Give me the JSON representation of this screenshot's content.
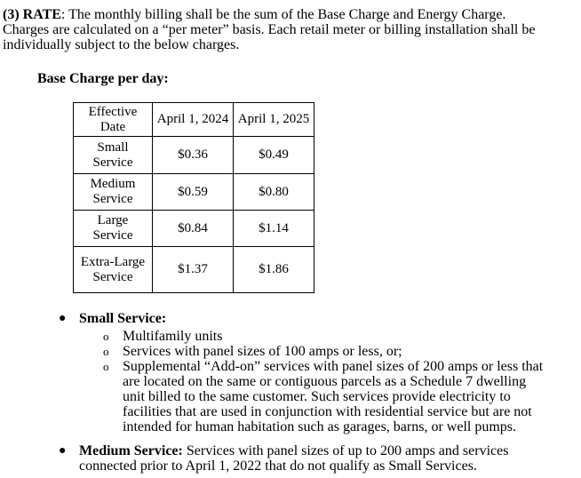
{
  "section": {
    "label": "(3) RATE",
    "text": ": The monthly billing shall be the sum of the Base Charge and Energy Charge. Charges are calculated on a “per meter” basis. Each retail meter or billing installation shall be individually subject to the below charges."
  },
  "table": {
    "caption": "Base Charge per day:",
    "header": [
      "Effective Date",
      "April 1, 2024",
      "April 1, 2025"
    ],
    "rows": [
      [
        "Small Service",
        "$0.36",
        "$0.49"
      ],
      [
        "Medium Service",
        "$0.59",
        "$0.80"
      ],
      [
        "Large Service",
        "$0.84",
        "$1.14"
      ],
      [
        "Extra-Large Service",
        "$1.37",
        "$1.86"
      ]
    ]
  },
  "bullets": [
    {
      "label": "Small Service:",
      "text": "",
      "items": [
        "Multifamily units",
        "Services with panel sizes of 100 amps or less, or;",
        "Supplemental “Add-on” services with panel sizes of 200 amps or less that are located on the same or contiguous parcels as a Schedule 7 dwelling unit billed to the same customer. Such services provide electricity to facilities that are used in conjunction with residential service but are not intended for human habitation such as garages, barns, or well pumps."
      ]
    },
    {
      "label": "Medium Service:",
      "text": " Services with panel sizes of up to 200 amps and services connected prior to April 1, 2022 that do not qualify as Small Services.",
      "items": []
    }
  ]
}
